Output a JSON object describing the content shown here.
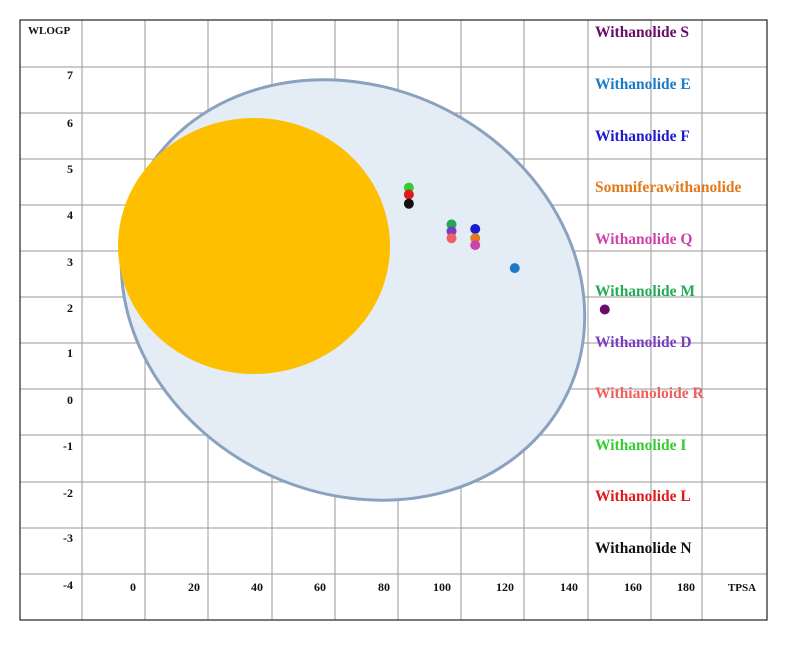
{
  "chart_data": {
    "type": "scatter",
    "xlabel": "TPSA",
    "ylabel": "WLOGP",
    "x_tick_labels": [
      "0",
      "20",
      "40",
      "60",
      "80",
      "100",
      "120",
      "140",
      "160",
      "180"
    ],
    "y_tick_labels": [
      "7",
      "6",
      "5",
      "4",
      "3",
      "2",
      "1",
      "0",
      "-1",
      "-2",
      "-3",
      "-4"
    ],
    "grid": true,
    "legend_position": "right",
    "regions": [
      {
        "shape": "ellipse",
        "role": "white",
        "fill": "#e4ecf5",
        "stroke": "#8aa2c0"
      },
      {
        "shape": "ellipse",
        "role": "yolk",
        "fill": "#fdbf00"
      }
    ],
    "series": [
      {
        "name": "Withanolide S",
        "color": "#6a0a6a",
        "points": [
          {
            "x": 145.5,
            "y": 1.75
          }
        ]
      },
      {
        "name": "Withanolide E",
        "color": "#1a7cc7",
        "points": [
          {
            "x": 117,
            "y": 2.65
          }
        ]
      },
      {
        "name": "Withanolide F",
        "color": "#1c1ccf",
        "points": [
          {
            "x": 104.5,
            "y": 3.5
          }
        ]
      },
      {
        "name": "Somniferawithanolide",
        "color": "#e07a1c",
        "points": [
          {
            "x": 104.5,
            "y": 3.3
          }
        ]
      },
      {
        "name": "Withanolide Q",
        "color": "#cc44aa",
        "points": [
          {
            "x": 104.5,
            "y": 3.15
          }
        ]
      },
      {
        "name": "Withanolide M",
        "color": "#22aa55",
        "points": [
          {
            "x": 97,
            "y": 3.6
          }
        ]
      },
      {
        "name": "Withanolide D",
        "color": "#7a3cc0",
        "points": [
          {
            "x": 97,
            "y": 3.45
          }
        ]
      },
      {
        "name": "Withianoloide R",
        "color": "#f06060",
        "points": [
          {
            "x": 97,
            "y": 3.3
          }
        ]
      },
      {
        "name": "Withanolide I",
        "color": "#33cc33",
        "points": [
          {
            "x": 83.5,
            "y": 4.4
          }
        ]
      },
      {
        "name": "Withanolide L",
        "color": "#e01a1a",
        "points": [
          {
            "x": 83.5,
            "y": 4.25
          }
        ]
      },
      {
        "name": "Withanolide N",
        "color": "#111111",
        "points": [
          {
            "x": 83.5,
            "y": 4.05
          }
        ]
      }
    ]
  }
}
